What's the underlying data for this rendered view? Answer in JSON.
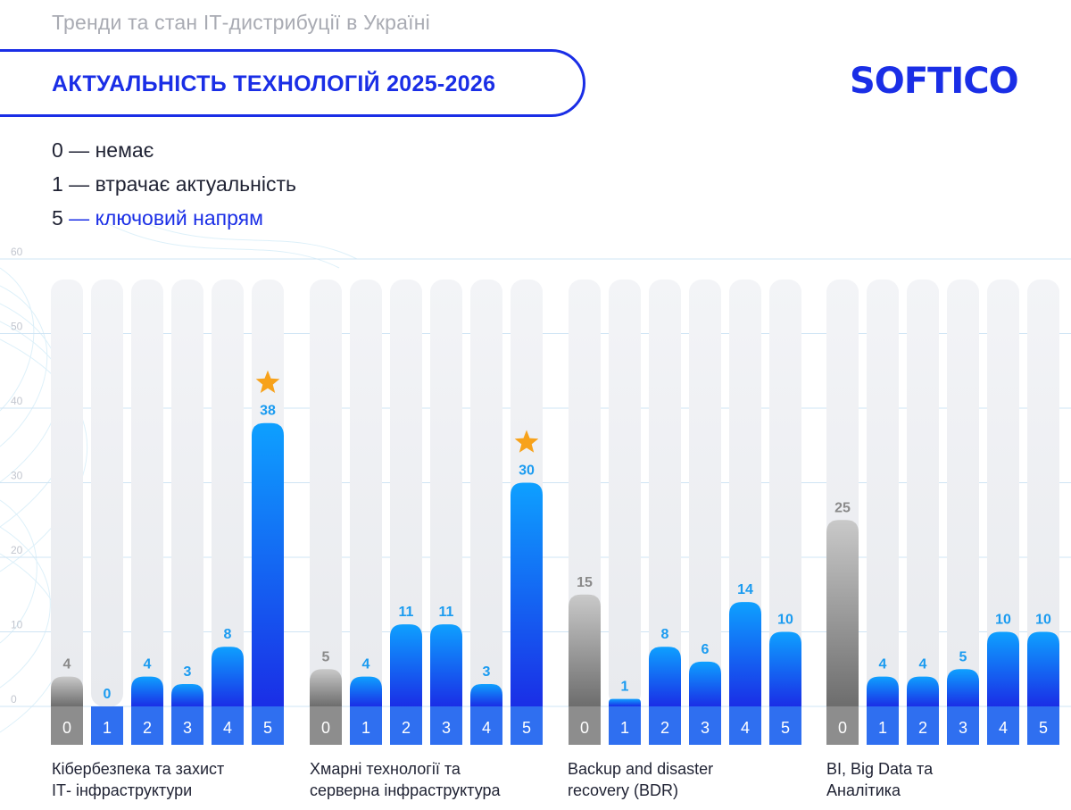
{
  "header": {
    "supertitle": "Тренди та стан ІТ-дистрибуції в Україні",
    "title": "АКТУАЛЬНІСТЬ ТЕХНОЛОГІЙ 2025-2026",
    "logo_text": "SOFTICO"
  },
  "legend": {
    "items": [
      {
        "code": "0",
        "sep": " — ",
        "text": "немає"
      },
      {
        "code": "1",
        "sep": " — ",
        "text": "втрачає актуальність"
      },
      {
        "code": "5",
        "sep": " — ",
        "text": "ключовий напрям"
      }
    ]
  },
  "colors": {
    "brand": "#1a2ee6",
    "gray_bar_top": "#c9c9c9",
    "gray_bar_bottom": "#6d6d6d",
    "blue_bar_top": "#0ea0ff",
    "blue_bar_bottom": "#1a2ee6",
    "gray_label": "#8a8a8a",
    "blue_label": "#1a9bf0",
    "star": "#f7a21b"
  },
  "chart_data": {
    "type": "bar",
    "ylim": [
      0,
      60
    ],
    "yticks": [
      "0",
      "10",
      "20",
      "30",
      "40",
      "50",
      "60"
    ],
    "grid": true,
    "categories": [
      "0",
      "1",
      "2",
      "3",
      "4",
      "5"
    ],
    "highlight_marker": "star-icon",
    "groups": [
      {
        "label_lines": [
          "Кібербезпека та захист",
          "ІТ- інфраструктури"
        ],
        "values": [
          4,
          0,
          4,
          3,
          8,
          38
        ],
        "star_index": 5
      },
      {
        "label_lines": [
          "Хмарні технології та",
          "серверна інфраструктура"
        ],
        "values": [
          5,
          4,
          11,
          11,
          3,
          30
        ],
        "star_index": 5
      },
      {
        "label_lines": [
          "Backup and disaster",
          "recovery (BDR)"
        ],
        "values": [
          15,
          1,
          8,
          6,
          14,
          10
        ],
        "star_index": null
      },
      {
        "label_lines": [
          "BI, Big Data та",
          "Аналітика"
        ],
        "values": [
          25,
          4,
          4,
          5,
          10,
          10
        ],
        "star_index": null
      }
    ]
  }
}
